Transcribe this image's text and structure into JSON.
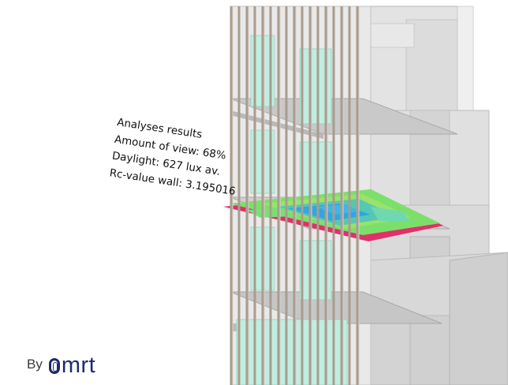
{
  "annotation": {
    "heading": "Analyses results",
    "view": "Amount of view: 68%",
    "daylight": "Daylight: 627 lux av.",
    "rc_value": "Rc-value wall: 3.195016"
  },
  "credit": {
    "by": "By",
    "brand": "mrt"
  },
  "colors": {
    "glass": "#bfeee0",
    "grey_volume": "#d6d6d6",
    "fin": "#a99c90",
    "heatmap_low": "#2fa7e0",
    "heatmap_mid": "#7be06a",
    "heatmap_edge": "#e0306a",
    "brand": "#1f2a6b"
  },
  "heatmap": {
    "legend": "daylight grid",
    "rows": 7,
    "cols": 18
  }
}
